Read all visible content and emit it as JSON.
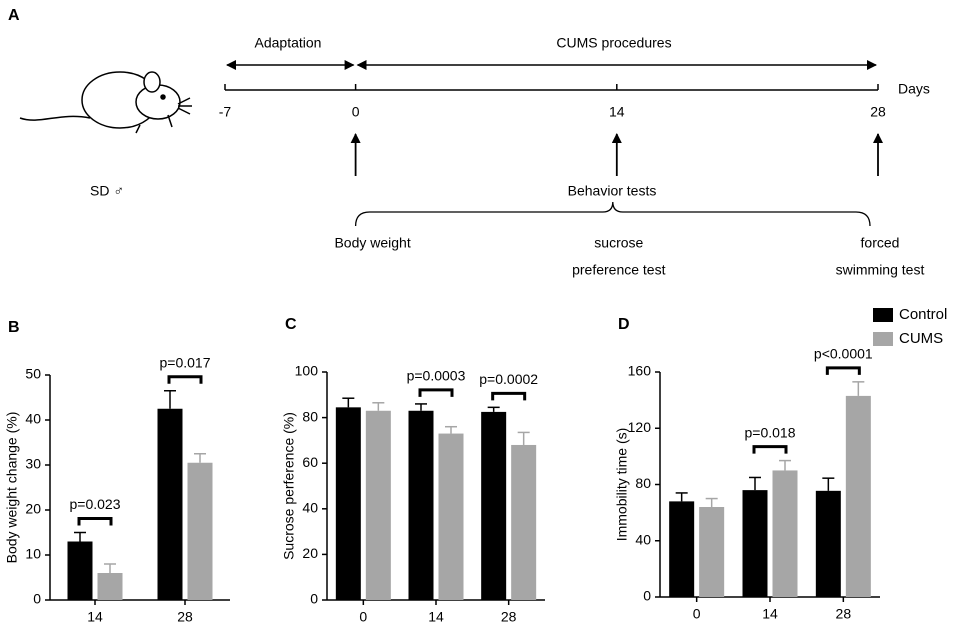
{
  "panel_a": {
    "label": "A",
    "adaptation": "Adaptation",
    "procedures": "CUMS procedures",
    "days_label": "Days",
    "days": [
      -7,
      0,
      14,
      28
    ],
    "animal": "SD ♂",
    "tests_title": "Behavior tests",
    "tests": [
      {
        "lines": [
          "Body weight"
        ]
      },
      {
        "lines": [
          "sucrose",
          "preference test"
        ]
      },
      {
        "lines": [
          "forced",
          "swimming test"
        ]
      }
    ]
  },
  "chart_data": [
    {
      "type": "bar",
      "panel": "B",
      "ylabel": "Body weight change (%)",
      "categories": [
        "14",
        "28"
      ],
      "series": [
        {
          "color": "#000000",
          "values": [
            13,
            42.5
          ],
          "errors": [
            2,
            4
          ]
        },
        {
          "color": "#a6a6a6",
          "values": [
            6,
            30.5
          ],
          "errors": [
            2,
            2
          ]
        }
      ],
      "annotations": [
        "p=0.023",
        "p=0.017"
      ],
      "ylim": [
        0,
        50
      ],
      "yticks": [
        0,
        10,
        20,
        30,
        40,
        50
      ]
    },
    {
      "type": "bar",
      "panel": "C",
      "ylabel": "Sucrose perference (%)",
      "categories": [
        "0",
        "14",
        "28"
      ],
      "series": [
        {
          "color": "#000000",
          "values": [
            84.5,
            83,
            82.5
          ],
          "errors": [
            4,
            3,
            2
          ]
        },
        {
          "color": "#a6a6a6",
          "values": [
            83,
            73,
            68
          ],
          "errors": [
            3.5,
            3,
            5.5
          ]
        }
      ],
      "annotations": [
        null,
        "p=0.0003",
        "p=0.0002"
      ],
      "ylim": [
        0,
        100
      ],
      "yticks": [
        0,
        20,
        40,
        60,
        80,
        100
      ]
    },
    {
      "type": "bar",
      "panel": "D",
      "ylabel": "Immobility time (s)",
      "categories": [
        "0",
        "14",
        "28"
      ],
      "series": [
        {
          "name": "Control",
          "color": "#000000",
          "values": [
            68,
            76,
            75.5
          ],
          "errors": [
            6,
            9,
            9
          ]
        },
        {
          "name": "CUMS",
          "color": "#a6a6a6",
          "values": [
            64,
            90,
            143
          ],
          "errors": [
            6,
            7,
            10
          ]
        }
      ],
      "annotations": [
        null,
        "p=0.018",
        "p<0.0001"
      ],
      "ylim": [
        0,
        160
      ],
      "yticks": [
        0,
        40,
        80,
        120,
        160
      ],
      "legend": "top-right"
    }
  ]
}
